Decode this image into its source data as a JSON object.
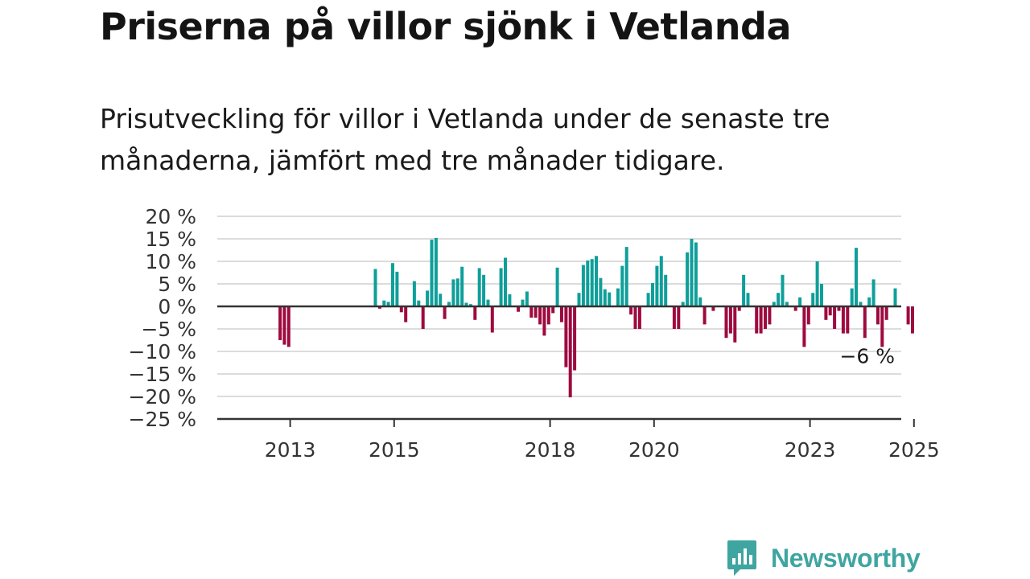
{
  "title": "Priserna på villor sjönk i Vetlanda",
  "subtitle": "Prisutveckling för villor i Vetlanda under de senaste tre månaderna, jämfört med tre månader tidigare.",
  "brand": {
    "name": "Newsworthy",
    "color": "#3fa5a0"
  },
  "colors": {
    "positive": "#0e9f9a",
    "negative": "#9e0a3f",
    "grid": "#dcdcdc",
    "axis": "#333333"
  },
  "chart_data": {
    "type": "bar",
    "ylim": [
      -25,
      20
    ],
    "yticks": [
      20,
      15,
      10,
      5,
      0,
      -5,
      -10,
      -15,
      -20,
      -25
    ],
    "ytick_labels": [
      "20 %",
      "15 %",
      "10 %",
      "5 %",
      "0 %",
      "−5 %",
      "−10 %",
      "−15 %",
      "−20 %",
      "−25 %"
    ],
    "xticks": [
      "2013",
      "2015",
      "2018",
      "2020",
      "2023",
      "2025"
    ],
    "grid": true,
    "annotation": {
      "text": "−6 %"
    },
    "series": [
      {
        "values": [
          {
            "x": "2013-03",
            "y": -7.5
          },
          {
            "x": "2013-04",
            "y": -8.5
          },
          {
            "x": "2013-05",
            "y": -9
          },
          {
            "x": "2015-01",
            "y": 8.3
          },
          {
            "x": "2015-02",
            "y": -0.5
          },
          {
            "x": "2015-03",
            "y": 1.3
          },
          {
            "x": "2015-04",
            "y": 1
          },
          {
            "x": "2015-05",
            "y": 9.6
          },
          {
            "x": "2015-06",
            "y": 7.7
          },
          {
            "x": "2015-07",
            "y": -1.3
          },
          {
            "x": "2015-08",
            "y": -3.5
          },
          {
            "x": "2015-10",
            "y": 5.6
          },
          {
            "x": "2015-11",
            "y": 1.3
          },
          {
            "x": "2015-12",
            "y": -5
          },
          {
            "x": "2016-01",
            "y": 3.5
          },
          {
            "x": "2016-02",
            "y": 14.8
          },
          {
            "x": "2016-03",
            "y": 15.2
          },
          {
            "x": "2016-04",
            "y": 2.8
          },
          {
            "x": "2016-05",
            "y": -2.8
          },
          {
            "x": "2016-06",
            "y": 1
          },
          {
            "x": "2016-07",
            "y": 6
          },
          {
            "x": "2016-08",
            "y": 6.2
          },
          {
            "x": "2016-09",
            "y": 8.8
          },
          {
            "x": "2016-10",
            "y": 0.8
          },
          {
            "x": "2016-11",
            "y": 0.5
          },
          {
            "x": "2016-12",
            "y": -3
          },
          {
            "x": "2017-01",
            "y": 8.5
          },
          {
            "x": "2017-02",
            "y": 7
          },
          {
            "x": "2017-03",
            "y": 1.5
          },
          {
            "x": "2017-04",
            "y": -5.8
          },
          {
            "x": "2017-06",
            "y": 8.5
          },
          {
            "x": "2017-07",
            "y": 10.8
          },
          {
            "x": "2017-08",
            "y": 2.7
          },
          {
            "x": "2017-10",
            "y": -1.2
          },
          {
            "x": "2017-11",
            "y": 1.5
          },
          {
            "x": "2017-12",
            "y": 3.3
          },
          {
            "x": "2018-01",
            "y": -2.5
          },
          {
            "x": "2018-02",
            "y": -2.5
          },
          {
            "x": "2018-03",
            "y": -4
          },
          {
            "x": "2018-04",
            "y": -6.5
          },
          {
            "x": "2018-05",
            "y": -4
          },
          {
            "x": "2018-06",
            "y": -1.5
          },
          {
            "x": "2018-07",
            "y": 8.6
          },
          {
            "x": "2018-08",
            "y": -3.5
          },
          {
            "x": "2018-09",
            "y": -13.5
          },
          {
            "x": "2018-10",
            "y": -20.2
          },
          {
            "x": "2018-11",
            "y": -14.2
          },
          {
            "x": "2018-12",
            "y": 3
          },
          {
            "x": "2019-01",
            "y": 9.2
          },
          {
            "x": "2019-02",
            "y": 10.2
          },
          {
            "x": "2019-03",
            "y": 10.5
          },
          {
            "x": "2019-04",
            "y": 11.2
          },
          {
            "x": "2019-05",
            "y": 6.3
          },
          {
            "x": "2019-06",
            "y": 3.8
          },
          {
            "x": "2019-07",
            "y": 3.1
          },
          {
            "x": "2019-09",
            "y": 4
          },
          {
            "x": "2019-10",
            "y": 9
          },
          {
            "x": "2019-11",
            "y": 13.2
          },
          {
            "x": "2019-12",
            "y": -1.8
          },
          {
            "x": "2020-01",
            "y": -5
          },
          {
            "x": "2020-02",
            "y": -5
          },
          {
            "x": "2020-04",
            "y": 3
          },
          {
            "x": "2020-05",
            "y": 5.2
          },
          {
            "x": "2020-06",
            "y": 9
          },
          {
            "x": "2020-07",
            "y": 11.2
          },
          {
            "x": "2020-08",
            "y": 7
          },
          {
            "x": "2020-10",
            "y": -5
          },
          {
            "x": "2020-11",
            "y": -5
          },
          {
            "x": "2020-12",
            "y": 1
          },
          {
            "x": "2021-01",
            "y": 12
          },
          {
            "x": "2021-02",
            "y": 15
          },
          {
            "x": "2021-03",
            "y": 14.2
          },
          {
            "x": "2021-04",
            "y": 2
          },
          {
            "x": "2021-05",
            "y": -4
          },
          {
            "x": "2021-07",
            "y": -1
          },
          {
            "x": "2021-10",
            "y": -7
          },
          {
            "x": "2021-11",
            "y": -6
          },
          {
            "x": "2021-12",
            "y": -8
          },
          {
            "x": "2022-01",
            "y": -1
          },
          {
            "x": "2022-02",
            "y": 7
          },
          {
            "x": "2022-03",
            "y": 3
          },
          {
            "x": "2022-05",
            "y": -6
          },
          {
            "x": "2022-06",
            "y": -6
          },
          {
            "x": "2022-07",
            "y": -5
          },
          {
            "x": "2022-08",
            "y": -4
          },
          {
            "x": "2022-09",
            "y": 1
          },
          {
            "x": "2022-10",
            "y": 3
          },
          {
            "x": "2022-11",
            "y": 7
          },
          {
            "x": "2022-12",
            "y": 1
          },
          {
            "x": "2023-02",
            "y": -1
          },
          {
            "x": "2023-03",
            "y": 2
          },
          {
            "x": "2023-04",
            "y": -9
          },
          {
            "x": "2023-05",
            "y": -4
          },
          {
            "x": "2023-06",
            "y": 3
          },
          {
            "x": "2023-07",
            "y": 10
          },
          {
            "x": "2023-08",
            "y": 5
          },
          {
            "x": "2023-09",
            "y": -3
          },
          {
            "x": "2023-10",
            "y": -2
          },
          {
            "x": "2023-11",
            "y": -5
          },
          {
            "x": "2023-12",
            "y": -1
          },
          {
            "x": "2024-01",
            "y": -6
          },
          {
            "x": "2024-02",
            "y": -6
          },
          {
            "x": "2024-03",
            "y": 4
          },
          {
            "x": "2024-04",
            "y": 13
          },
          {
            "x": "2024-05",
            "y": 1
          },
          {
            "x": "2024-06",
            "y": -7
          },
          {
            "x": "2024-07",
            "y": 2
          },
          {
            "x": "2024-08",
            "y": 6
          },
          {
            "x": "2024-09",
            "y": -4
          },
          {
            "x": "2024-10",
            "y": -9
          },
          {
            "x": "2024-11",
            "y": -3
          },
          {
            "x": "2025-01",
            "y": 4
          },
          {
            "x": "2025-04",
            "y": -4
          },
          {
            "x": "2025-05",
            "y": -6
          }
        ]
      }
    ]
  }
}
